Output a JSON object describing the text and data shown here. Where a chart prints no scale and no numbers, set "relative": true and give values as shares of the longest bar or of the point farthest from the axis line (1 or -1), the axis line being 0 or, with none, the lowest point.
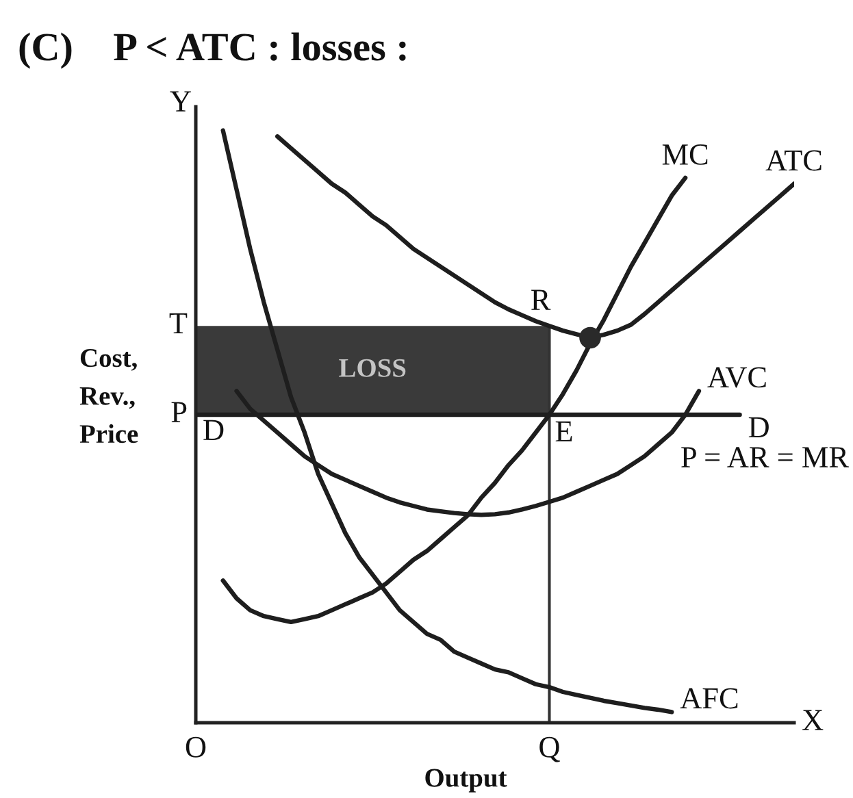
{
  "chart_data": {
    "type": "line",
    "title": "(C)    P < ATC : losses :",
    "xlabel": "Output",
    "ylabel": "Cost,\nRev.,\nPrice",
    "relative": true,
    "categories": [
      "O",
      null,
      null,
      null,
      null,
      null,
      null,
      null,
      null,
      null,
      null,
      null,
      null,
      null,
      null,
      null,
      null,
      null,
      null,
      null,
      null,
      null,
      null,
      null,
      null,
      null,
      "Q",
      null,
      null,
      null,
      null,
      null,
      null,
      null,
      null,
      null,
      null,
      null,
      null,
      null,
      null,
      null,
      null,
      null,
      null
    ],
    "series": [
      {
        "name": "D",
        "color": "#1e1e1e",
        "values": [
          0.52,
          0.52,
          0.52,
          0.52,
          0.52,
          0.52,
          0.52,
          0.52,
          0.52,
          0.52,
          0.52,
          0.52,
          0.52,
          0.52,
          0.52,
          0.52,
          0.52,
          0.52,
          0.52,
          0.52,
          0.52,
          0.52,
          0.52,
          0.52,
          0.52,
          0.52,
          0.52,
          0.52,
          0.52,
          0.52,
          0.52,
          0.52,
          0.52,
          0.52,
          0.52,
          0.52,
          0.52,
          0.52,
          0.52,
          0.52,
          0.52,
          null,
          null,
          null,
          null
        ]
      },
      {
        "name": "MC",
        "color": "#1e1e1e",
        "values": [
          null,
          null,
          0.24,
          0.21,
          0.19,
          0.18,
          0.175,
          0.17,
          0.175,
          0.18,
          0.19,
          0.2,
          0.21,
          0.22,
          0.235,
          0.255,
          0.275,
          0.29,
          0.31,
          0.33,
          0.35,
          0.38,
          0.405,
          0.435,
          0.46,
          0.49,
          0.52,
          0.555,
          0.595,
          0.64,
          0.68,
          0.725,
          0.77,
          0.81,
          0.85,
          0.89,
          0.92,
          null,
          null,
          null,
          null,
          null,
          null,
          null,
          null
        ]
      },
      {
        "name": "ATC",
        "color": "#1e1e1e",
        "values": [
          null,
          null,
          null,
          null,
          null,
          null,
          0.99,
          0.97,
          0.95,
          0.93,
          0.91,
          0.895,
          0.875,
          0.855,
          0.84,
          0.82,
          0.8,
          0.785,
          0.77,
          0.755,
          0.74,
          0.725,
          0.71,
          0.698,
          0.688,
          0.678,
          0.67,
          0.662,
          0.656,
          0.65,
          0.655,
          0.662,
          0.672,
          0.69,
          0.71,
          0.73,
          0.75,
          0.77,
          0.79,
          0.81,
          0.83,
          0.85,
          0.87,
          0.89,
          0.91
        ]
      },
      {
        "name": "AVC",
        "color": "#1e1e1e",
        "values": [
          null,
          null,
          null,
          0.56,
          0.53,
          0.51,
          0.49,
          0.47,
          0.45,
          0.435,
          0.42,
          0.41,
          0.4,
          0.39,
          0.38,
          0.372,
          0.366,
          0.36,
          0.357,
          0.354,
          0.352,
          0.351,
          0.352,
          0.355,
          0.36,
          0.366,
          0.373,
          0.38,
          0.39,
          0.4,
          0.41,
          0.42,
          0.435,
          0.45,
          0.47,
          0.49,
          0.52,
          0.56,
          null,
          null,
          null,
          null,
          null,
          null,
          null
        ]
      },
      {
        "name": "AFC",
        "color": "#1e1e1e",
        "values": [
          null,
          null,
          1.0,
          0.9,
          0.8,
          0.71,
          0.63,
          0.55,
          0.49,
          0.42,
          0.37,
          0.32,
          0.28,
          0.25,
          0.22,
          0.19,
          0.17,
          0.15,
          0.14,
          0.12,
          0.11,
          0.1,
          0.09,
          0.085,
          0.075,
          0.065,
          0.06,
          0.052,
          0.047,
          0.042,
          0.037,
          0.033,
          0.029,
          0.025,
          0.022,
          0.018,
          null,
          null,
          null,
          null,
          null,
          null,
          null,
          null,
          null
        ]
      },
      {
        "type": "scatter",
        "marker": "circle",
        "color": "#2a2a2a",
        "values": [
          null,
          null,
          null,
          null,
          null,
          null,
          null,
          null,
          null,
          null,
          null,
          null,
          null,
          null,
          null,
          null,
          null,
          null,
          null,
          null,
          null,
          null,
          null,
          null,
          null,
          null,
          null,
          null,
          null,
          0.65,
          null,
          null,
          null,
          null,
          null,
          null,
          null,
          null,
          null,
          null,
          null,
          null,
          null,
          null,
          null
        ]
      }
    ],
    "bands": [
      {
        "axis": "y",
        "from": 0.52,
        "to": 0.67,
        "label": "LOSS",
        "color": "#3a3a3a"
      }
    ],
    "ref_lines": [
      {
        "axis": "x",
        "value": "Q",
        "color": "#333333"
      }
    ],
    "annotations": [
      {
        "text": "Y",
        "x": "O"
      },
      "X",
      {
        "text": "T",
        "x": "O",
        "y": 0.67
      },
      {
        "text": "P",
        "x": "O",
        "y": 0.52
      },
      {
        "text": "R",
        "x": "Q",
        "y": 0.67
      },
      {
        "text": "E",
        "x": "Q",
        "y": 0.52
      },
      "P = AR = MR"
    ]
  }
}
